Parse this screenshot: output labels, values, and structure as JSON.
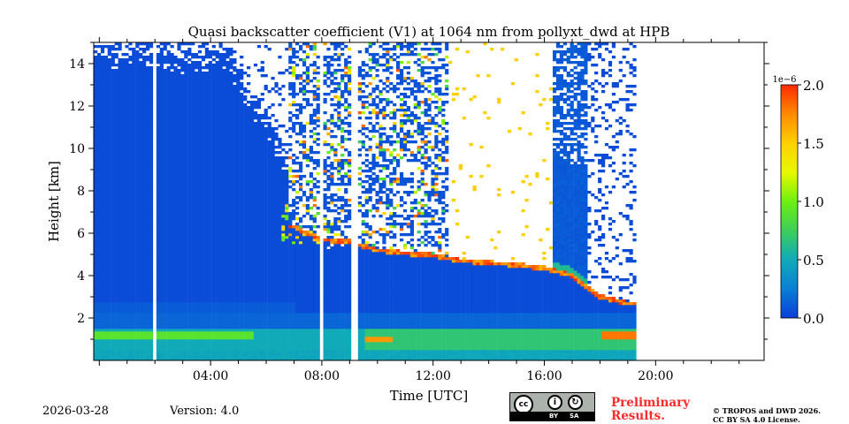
{
  "chart_data": {
    "type": "heatmap",
    "title": "Quasi backscatter coefficient (V1) at 1064 nm from pollyxt_dwd at HPB",
    "xlabel": "Time [UTC]",
    "ylabel": "Height [km]",
    "xlim_hours": [
      -0.2,
      23.9
    ],
    "ylim_km": [
      0,
      15
    ],
    "x_ticks": [
      {
        "v": 4,
        "label": "04:00"
      },
      {
        "v": 8,
        "label": "08:00"
      },
      {
        "v": 12,
        "label": "12:00"
      },
      {
        "v": 16,
        "label": "16:00"
      },
      {
        "v": 20,
        "label": "20:00"
      }
    ],
    "y_ticks": [
      {
        "v": 2,
        "label": "2"
      },
      {
        "v": 4,
        "label": "4"
      },
      {
        "v": 6,
        "label": "6"
      },
      {
        "v": 8,
        "label": "8"
      },
      {
        "v": 10,
        "label": "10"
      },
      {
        "v": 12,
        "label": "12"
      },
      {
        "v": 14,
        "label": "14"
      }
    ],
    "colorbar": {
      "range": [
        0,
        2.0
      ],
      "scale_label": "1e−6",
      "ticks": [
        {
          "v": 0,
          "label": "0.0"
        },
        {
          "v": 0.5,
          "label": "0.5"
        },
        {
          "v": 1.0,
          "label": "1.0"
        },
        {
          "v": 1.5,
          "label": "1.5"
        },
        {
          "v": 2.0,
          "label": "2.0"
        }
      ],
      "colors": [
        "#0a3fd9",
        "#0a7fd6",
        "#10aab8",
        "#3ccf5a",
        "#6ef010",
        "#e8f800",
        "#ffd000",
        "#ff8a00",
        "#ff2a00"
      ]
    },
    "data_end_hour": 19.3,
    "data_gaps_hours": [
      [
        1.92,
        2.08
      ],
      [
        7.98,
        8.02
      ],
      [
        9.05,
        9.25
      ]
    ],
    "cloud_base_km_by_hour": {
      "7": 6.2,
      "8": 5.6,
      "9": 5.5,
      "10": 5.1,
      "11": 4.95,
      "12": 4.85,
      "13": 4.6,
      "14": 4.5,
      "15": 4.4,
      "16": 4.25,
      "17": 3.9,
      "18": 2.9,
      "19": 2.6
    },
    "boundary_layer_top_km": 1.5,
    "units": "×1e−6 (colorbar)"
  },
  "footer": {
    "date": "2026-03-28",
    "version": "Version: 4.0",
    "preliminary": [
      "Preliminary",
      "Results."
    ],
    "copyright": [
      "© TROPOS and DWD 2026.",
      "CC BY SA 4.0 License."
    ],
    "license_badge": {
      "cc": "cc",
      "by": "BY",
      "sa": "SA"
    }
  }
}
